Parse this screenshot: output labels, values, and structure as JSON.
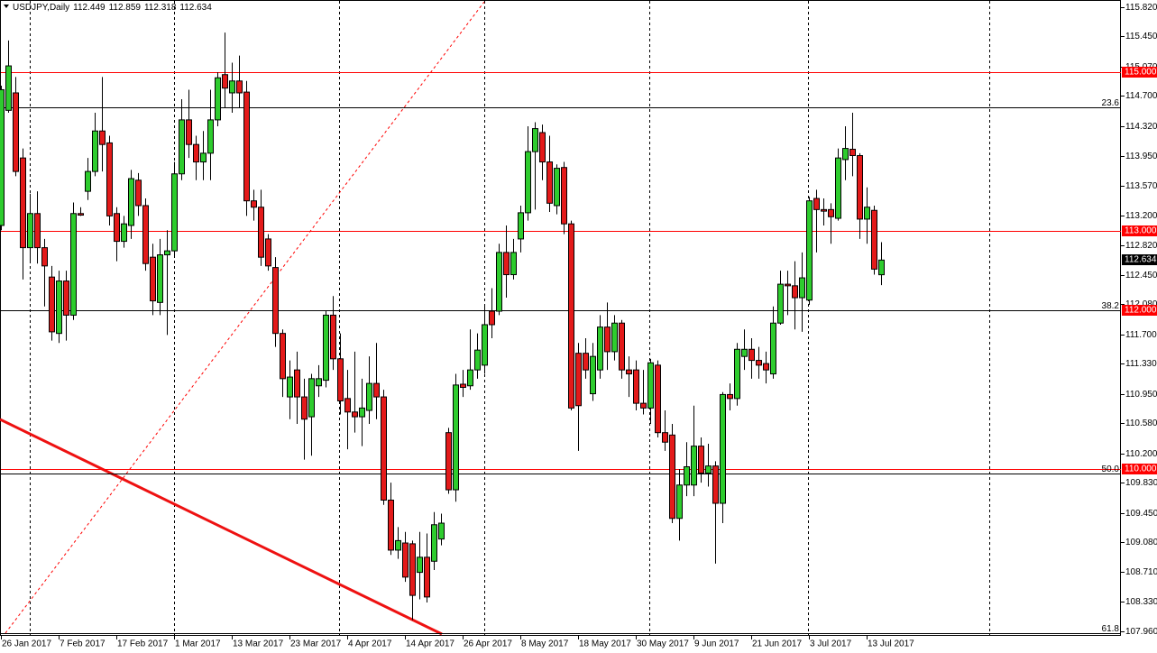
{
  "chart_data": {
    "type": "candlestick",
    "title": "USDJPY,Daily",
    "categories": [
      null,
      "26 Jan 2017",
      null,
      null,
      null,
      null,
      null,
      null,
      null,
      "7 Feb 2017",
      null,
      null,
      null,
      null,
      null,
      null,
      null,
      "17 Feb 2017",
      null,
      null,
      null,
      null,
      null,
      null,
      null,
      "1 Mar 2017",
      null,
      null,
      null,
      null,
      null,
      null,
      null,
      "13 Mar 2017",
      null,
      null,
      null,
      null,
      null,
      null,
      null,
      "23 Mar 2017",
      null,
      null,
      null,
      null,
      null,
      null,
      null,
      "4 Apr 2017",
      null,
      null,
      null,
      null,
      null,
      null,
      null,
      "14 Apr 2017",
      null,
      null,
      null,
      null,
      null,
      null,
      null,
      "26 Apr 2017",
      null,
      null,
      null,
      null,
      null,
      null,
      null,
      "8 May 2017",
      null,
      null,
      null,
      null,
      null,
      null,
      null,
      "18 May 2017",
      null,
      null,
      null,
      null,
      null,
      null,
      null,
      "30 May 2017",
      null,
      null,
      null,
      null,
      null,
      null,
      null,
      "9 Jun 2017",
      null,
      null,
      null,
      null,
      null,
      null,
      null,
      "21 Jun 2017",
      null,
      null,
      null,
      null,
      null,
      null,
      null,
      "3 Jul 2017",
      null,
      null,
      null,
      null,
      null,
      null,
      null,
      "13 Jul 2017",
      null
    ],
    "open": [
      113.07,
      114.52,
      114.74,
      113.92,
      112.79,
      113.22,
      112.79,
      112.42,
      111.71,
      112.37,
      111.94,
      113.22,
      113.5,
      113.75,
      114.26,
      114.11,
      113.22,
      112.87,
      113.07,
      113.64,
      113.32,
      112.67,
      112.1,
      112.7,
      112.75,
      113.72,
      114.4,
      114.09,
      113.87,
      113.98,
      114.4,
      114.97,
      114.74,
      114.89,
      114.75,
      113.38,
      113.3,
      112.9,
      112.54,
      111.71,
      110.91,
      111.25,
      110.91,
      110.66,
      111.05,
      111.12,
      111.94,
      111.39,
      110.89,
      110.72,
      110.66,
      110.74,
      111.08,
      110.91,
      109.61,
      108.98,
      109.07,
      109.06,
      108.7,
      108.89,
      108.84,
      109.12,
      110.46,
      109.74,
      111.07,
      111.05,
      111.25,
      111.31,
      111.99,
      111.99,
      112.73,
      112.45,
      112.9,
      113.23,
      114.0,
      114.24,
      113.87,
      113.32,
      113.8,
      113.09,
      111.46,
      111.46,
      110.95,
      111.25,
      111.79,
      111.48,
      111.84,
      111.25,
      111.25,
      110.83,
      110.77,
      111.31,
      110.46,
      110.43,
      109.38,
      109.8,
      109.8,
      110.29,
      109.95,
      110.04,
      109.57,
      110.94,
      110.89,
      111.42,
      111.51,
      111.37,
      111.33,
      111.2,
      111.84,
      112.33,
      112.31,
      112.16,
      112.13,
      113.41,
      113.27,
      113.27,
      113.16,
      113.9,
      114.03,
      113.95,
      113.15,
      113.26,
      112.449
    ],
    "high": [
      114.83,
      115.4,
      114.94,
      114.04,
      113.47,
      113.5,
      112.9,
      112.56,
      112.5,
      112.5,
      113.36,
      113.3,
      113.92,
      114.49,
      114.94,
      114.2,
      113.3,
      113.19,
      113.77,
      113.73,
      113.41,
      112.84,
      112.9,
      113.01,
      113.87,
      114.66,
      114.78,
      114.2,
      114.26,
      114.78,
      115.0,
      115.5,
      115.12,
      115.21,
      114.89,
      113.52,
      113.52,
      112.96,
      112.67,
      111.76,
      111.37,
      111.48,
      111.14,
      111.2,
      111.31,
      112.0,
      112.18,
      111.71,
      111.25,
      111.48,
      111.14,
      111.42,
      111.59,
      111.0,
      109.83,
      109.27,
      109.21,
      109.1,
      109.21,
      109.19,
      109.46,
      109.44,
      110.52,
      111.2,
      111.25,
      111.76,
      111.71,
      112.05,
      112.28,
      112.84,
      113.07,
      112.9,
      113.32,
      114.32,
      114.37,
      114.34,
      114.2,
      113.84,
      113.87,
      113.13,
      111.59,
      111.65,
      111.59,
      111.94,
      112.1,
      111.94,
      111.88,
      111.42,
      111.37,
      111.25,
      111.39,
      111.37,
      110.74,
      110.57,
      110.0,
      110.34,
      110.8,
      110.4,
      110.32,
      110.1,
      110.97,
      111.08,
      111.59,
      111.76,
      111.65,
      111.54,
      111.48,
      112.05,
      112.5,
      112.5,
      112.62,
      112.73,
      113.43,
      113.52,
      113.41,
      113.35,
      114.04,
      114.32,
      114.49,
      113.98,
      113.55,
      113.32,
      112.859
    ],
    "low": [
      113.01,
      114.49,
      113.69,
      112.39,
      112.62,
      112.59,
      112.05,
      111.62,
      111.59,
      111.62,
      111.88,
      113.19,
      113.39,
      113.69,
      113.75,
      113.07,
      112.62,
      112.79,
      112.9,
      113.19,
      112.5,
      111.94,
      111.94,
      111.69,
      112.67,
      113.64,
      113.92,
      113.64,
      113.64,
      113.64,
      114.32,
      114.55,
      114.49,
      114.55,
      113.19,
      113.13,
      112.56,
      112.5,
      111.54,
      110.91,
      110.63,
      110.57,
      110.12,
      110.17,
      110.91,
      111.03,
      111.25,
      110.69,
      110.25,
      110.46,
      110.29,
      110.57,
      110.63,
      109.55,
      108.92,
      108.87,
      108.58,
      108.1,
      108.36,
      108.32,
      108.73,
      109.04,
      109.69,
      109.59,
      110.91,
      111.0,
      111.14,
      111.2,
      111.65,
      111.94,
      112.16,
      112.39,
      112.73,
      113.13,
      113.27,
      113.64,
      113.24,
      113.21,
      112.96,
      110.74,
      110.23,
      111.14,
      110.86,
      111.14,
      111.25,
      111.37,
      111.14,
      110.91,
      110.74,
      110.69,
      110.57,
      110.4,
      110.23,
      109.32,
      109.1,
      109.66,
      109.66,
      109.83,
      109.78,
      108.81,
      109.32,
      110.74,
      110.8,
      111.25,
      111.14,
      111.14,
      111.08,
      111.14,
      111.82,
      111.94,
      111.76,
      111.73,
      112.07,
      112.73,
      113.07,
      112.84,
      113.13,
      113.64,
      113.69,
      112.9,
      112.84,
      112.45,
      112.318
    ],
    "close": [
      114.78,
      115.08,
      113.75,
      112.79,
      113.22,
      112.79,
      112.56,
      111.73,
      112.37,
      111.94,
      113.22,
      113.2,
      113.75,
      114.26,
      114.09,
      113.19,
      112.87,
      113.09,
      113.66,
      113.32,
      112.59,
      112.12,
      112.7,
      112.75,
      113.72,
      114.4,
      114.09,
      113.87,
      113.98,
      114.4,
      114.93,
      114.8,
      114.89,
      114.74,
      113.38,
      113.3,
      112.67,
      112.56,
      111.71,
      111.14,
      111.16,
      110.91,
      110.63,
      111.14,
      111.14,
      111.94,
      111.39,
      110.86,
      110.72,
      110.66,
      110.77,
      111.08,
      110.91,
      109.61,
      108.98,
      109.1,
      108.64,
      108.41,
      108.89,
      108.39,
      109.3,
      109.32,
      109.74,
      111.06,
      111.03,
      111.25,
      111.5,
      111.82,
      111.82,
      112.73,
      112.45,
      112.73,
      113.23,
      114.0,
      114.29,
      113.87,
      113.35,
      113.79,
      113.09,
      110.77,
      110.8,
      111.25,
      111.42,
      111.79,
      111.48,
      111.84,
      111.25,
      111.2,
      110.83,
      110.77,
      111.34,
      110.46,
      110.34,
      109.38,
      109.8,
      110.03,
      110.29,
      109.95,
      110.04,
      109.57,
      110.94,
      110.89,
      111.51,
      111.51,
      111.37,
      111.31,
      111.25,
      111.84,
      112.33,
      112.31,
      112.16,
      112.41,
      113.38,
      113.27,
      113.25,
      113.18,
      113.92,
      114.04,
      113.95,
      113.15,
      113.3,
      112.52,
      112.634
    ],
    "up_color": "#2ecc2e",
    "down_color": "#e31a1a",
    "ylim": [
      107.9,
      115.91
    ],
    "yticks": [
      {
        "value": 115.82,
        "label": "115.820"
      },
      {
        "value": 115.45,
        "label": "115.450"
      },
      {
        "value": 115.07,
        "label": "115.070"
      },
      {
        "value": 114.7,
        "label": "114.700"
      },
      {
        "value": 114.32,
        "label": "114.320"
      },
      {
        "value": 113.95,
        "label": "113.950"
      },
      {
        "value": 113.57,
        "label": "113.570"
      },
      {
        "value": 113.2,
        "label": "113.200"
      },
      {
        "value": 112.82,
        "label": "112.820"
      },
      {
        "value": 112.45,
        "label": "112.450"
      },
      {
        "value": 112.08,
        "label": "112.080"
      },
      {
        "value": 111.7,
        "label": "111.700"
      },
      {
        "value": 111.33,
        "label": "111.330"
      },
      {
        "value": 110.95,
        "label": "110.950"
      },
      {
        "value": 110.58,
        "label": "110.580"
      },
      {
        "value": 110.2,
        "label": "110.200"
      },
      {
        "value": 109.83,
        "label": "109.830"
      },
      {
        "value": 109.45,
        "label": "109.450"
      },
      {
        "value": 109.08,
        "label": "109.080"
      },
      {
        "value": 108.71,
        "label": "108.710"
      },
      {
        "value": 108.33,
        "label": "108.330"
      },
      {
        "value": 107.96,
        "label": "107.960"
      }
    ],
    "levels": [
      {
        "value": 115,
        "label": "115.000"
      },
      {
        "value": 113,
        "label": "113.000"
      },
      {
        "value": 112,
        "label": "112.000"
      },
      {
        "value": 110,
        "label": "110.000"
      }
    ],
    "level_color": "#ff0000",
    "fib_levels": [
      {
        "name": "23.6",
        "value": 114.56
      },
      {
        "name": "38.2",
        "value": 112.0
      },
      {
        "name": "50.0",
        "value": 109.94
      },
      {
        "name": "61.8",
        "value": 107.93
      }
    ],
    "fib_color": "#000000"
  }
}
